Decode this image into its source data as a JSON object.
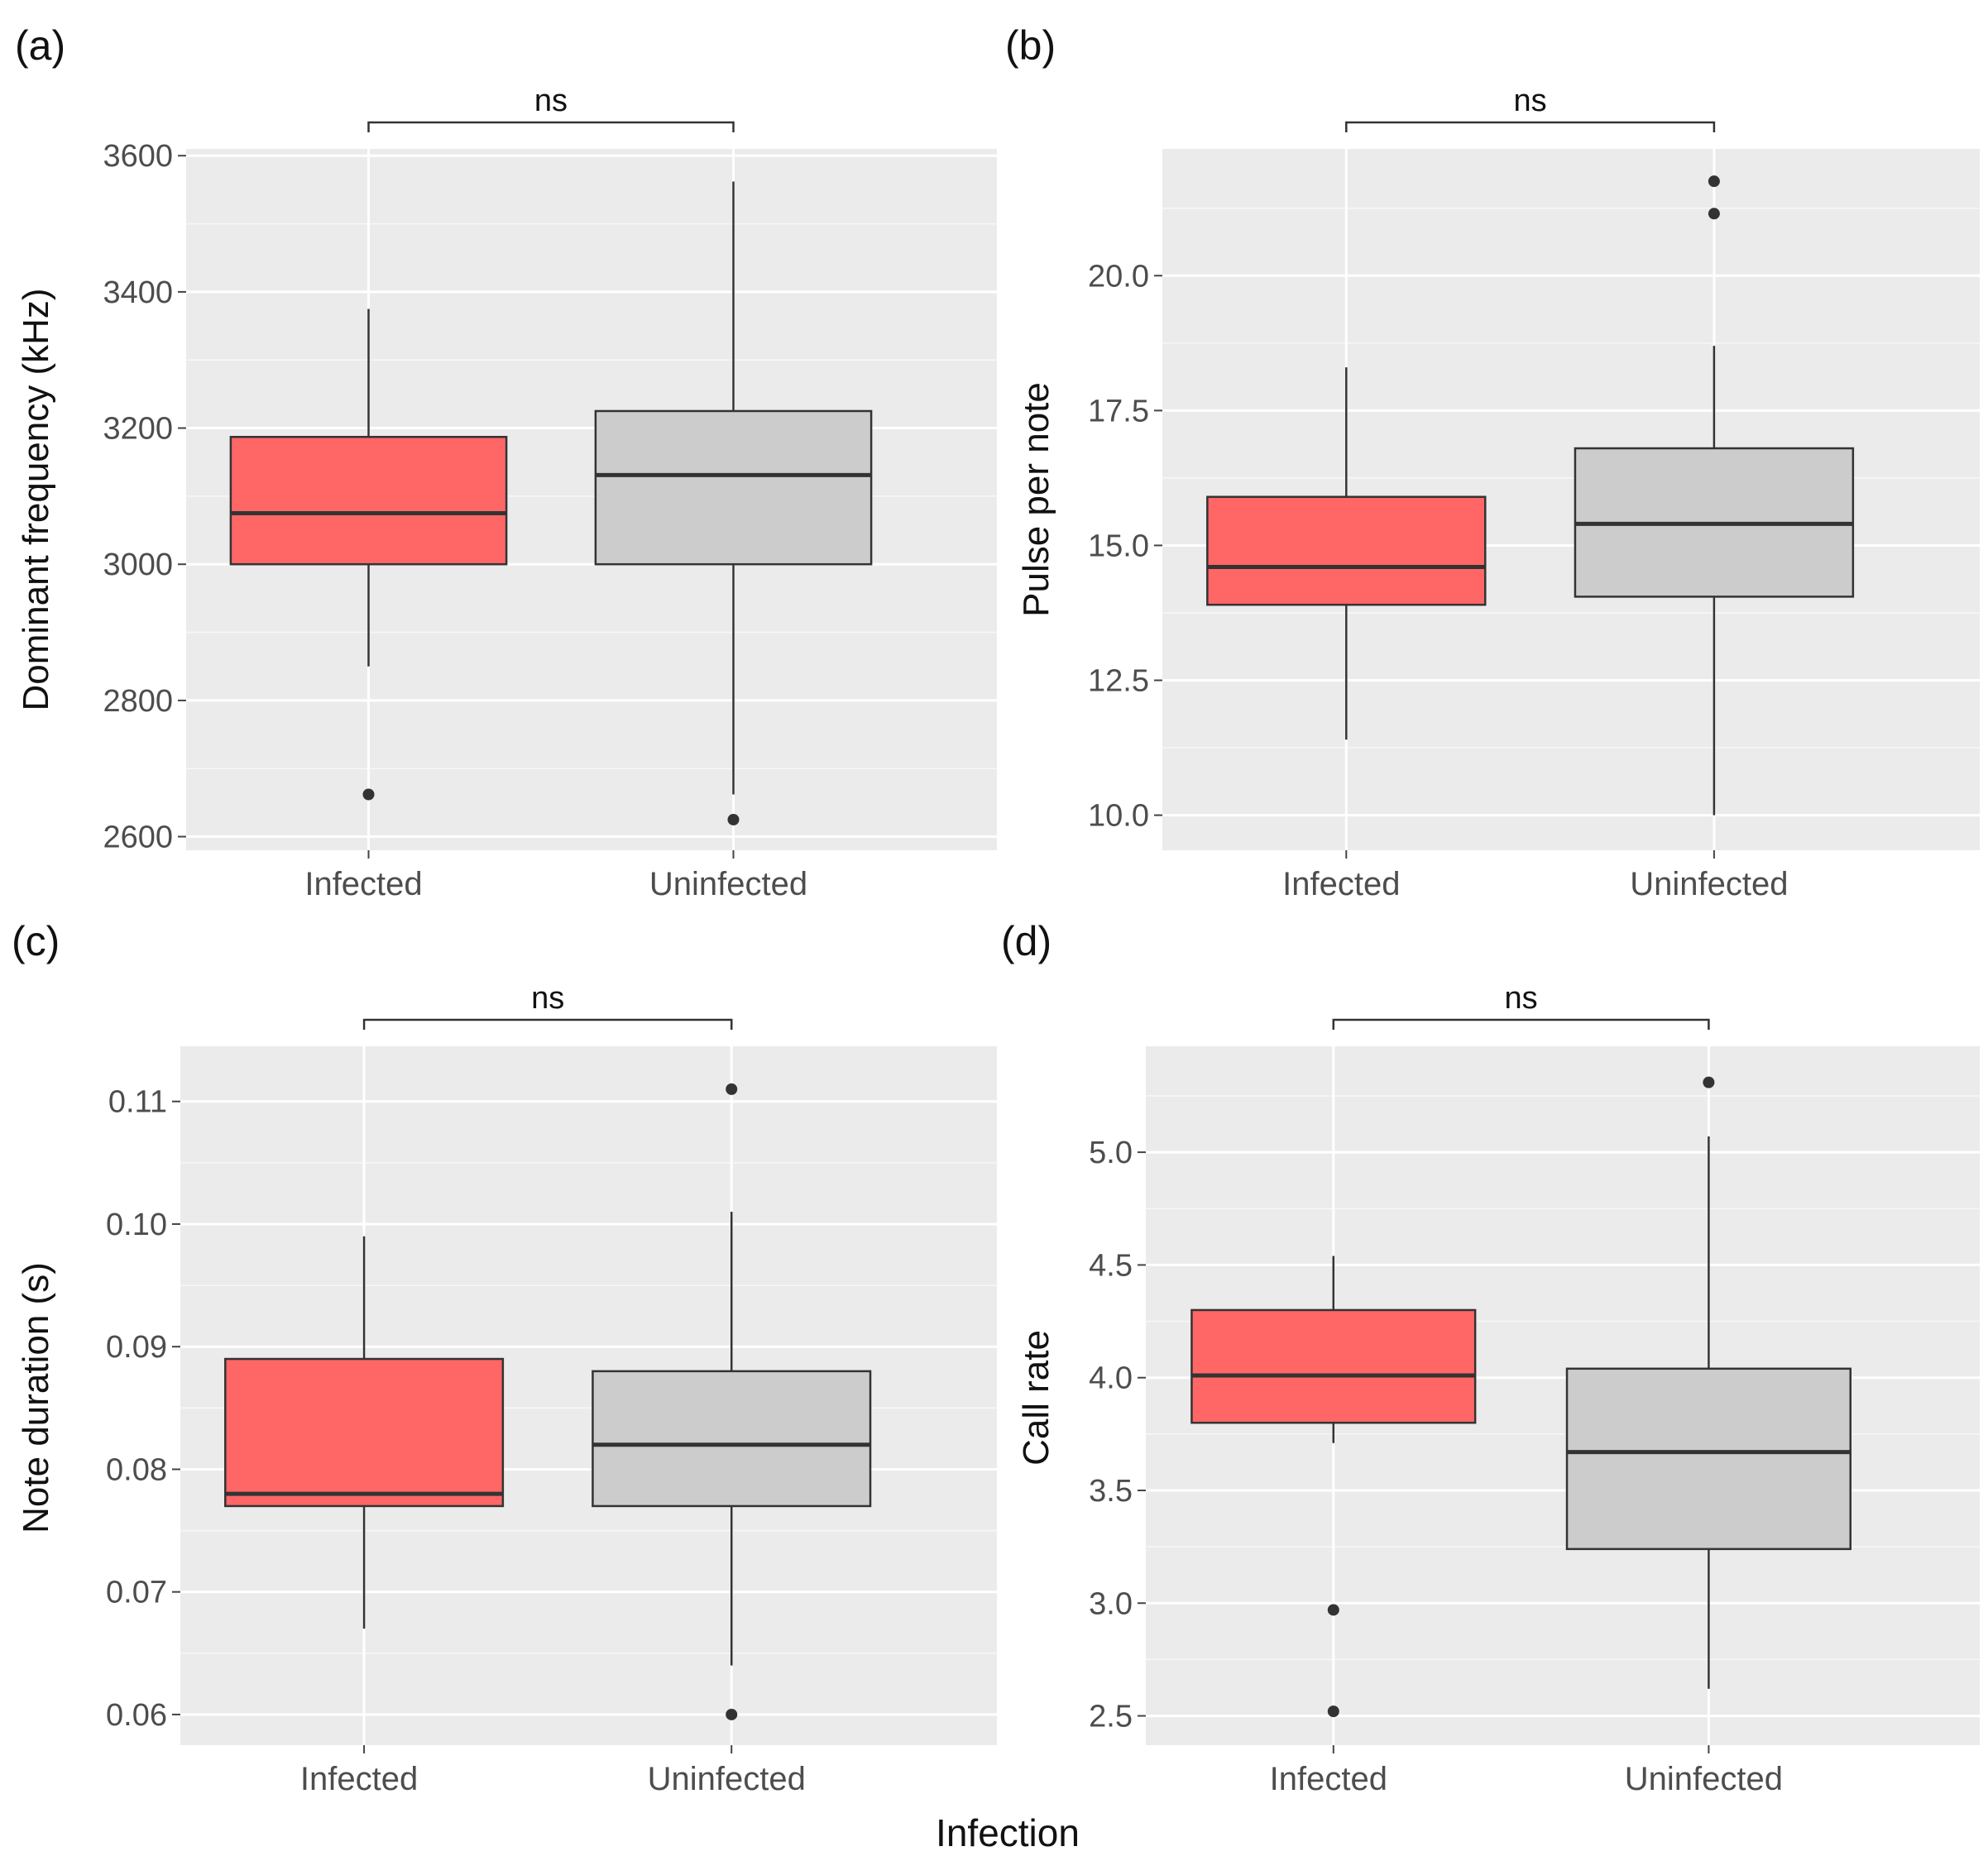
{
  "figure": {
    "shared_xlabel": "Infection"
  },
  "chart_data": [
    {
      "type": "boxplot",
      "panel_label": "(a)",
      "ylabel": "Dominant frequency (kHz)",
      "xlabel": "",
      "categories": [
        "Infected",
        "Uninfected"
      ],
      "ylim": [
        2580,
        3610
      ],
      "yticks": [
        2600,
        2800,
        3000,
        3200,
        3400,
        3600
      ],
      "ytick_labels": [
        "2600",
        "2800",
        "3000",
        "3200",
        "3400",
        "3600"
      ],
      "boxes": [
        {
          "category": "Infected",
          "whisker_low": 2850,
          "q1": 3000,
          "median": 3075,
          "q3": 3187,
          "whisker_high": 3375,
          "outliers": [
            2662
          ],
          "fill": "#ff6666"
        },
        {
          "category": "Uninfected",
          "whisker_low": 2662,
          "q1": 3000,
          "median": 3131,
          "q3": 3225,
          "whisker_high": 3562,
          "outliers": [
            2625
          ],
          "fill": "#cccccc"
        }
      ],
      "significance": {
        "label": "ns"
      }
    },
    {
      "type": "boxplot",
      "panel_label": "(b)",
      "ylabel": "Pulse per note",
      "xlabel": "",
      "categories": [
        "Infected",
        "Uninfected"
      ],
      "ylim": [
        9.35,
        22.35
      ],
      "yticks": [
        10.0,
        12.5,
        15.0,
        17.5,
        20.0
      ],
      "ytick_labels": [
        "10.0",
        "12.5",
        "15.0",
        "17.5",
        "20.0"
      ],
      "boxes": [
        {
          "category": "Infected",
          "whisker_low": 11.4,
          "q1": 13.9,
          "median": 14.6,
          "q3": 15.9,
          "whisker_high": 18.3,
          "outliers": [],
          "fill": "#ff6666"
        },
        {
          "category": "Uninfected",
          "whisker_low": 10.0,
          "q1": 14.05,
          "median": 15.4,
          "q3": 16.8,
          "whisker_high": 18.7,
          "outliers": [
            21.75,
            21.15
          ],
          "fill": "#cccccc"
        }
      ],
      "significance": {
        "label": "ns"
      }
    },
    {
      "type": "boxplot",
      "panel_label": "(c)",
      "ylabel": "Note duration (s)",
      "xlabel": "",
      "categories": [
        "Infected",
        "Uninfected"
      ],
      "ylim": [
        0.0575,
        0.1145
      ],
      "yticks": [
        0.06,
        0.07,
        0.08,
        0.09,
        0.1,
        0.11
      ],
      "ytick_labels": [
        "0.06",
        "0.07",
        "0.08",
        "0.09",
        "0.10",
        "0.11"
      ],
      "boxes": [
        {
          "category": "Infected",
          "whisker_low": 0.067,
          "q1": 0.077,
          "median": 0.078,
          "q3": 0.089,
          "whisker_high": 0.099,
          "outliers": [],
          "fill": "#ff6666"
        },
        {
          "category": "Uninfected",
          "whisker_low": 0.064,
          "q1": 0.077,
          "median": 0.082,
          "q3": 0.088,
          "whisker_high": 0.101,
          "outliers": [
            0.111,
            0.06
          ],
          "fill": "#cccccc"
        }
      ],
      "significance": {
        "label": "ns"
      }
    },
    {
      "type": "boxplot",
      "panel_label": "(d)",
      "ylabel": "Call rate",
      "xlabel": "",
      "categories": [
        "Infected",
        "Uninfected"
      ],
      "ylim": [
        2.37,
        5.47
      ],
      "yticks": [
        2.5,
        3.0,
        3.5,
        4.0,
        4.5,
        5.0
      ],
      "ytick_labels": [
        "2.5",
        "3.0",
        "3.5",
        "4.0",
        "4.5",
        "5.0"
      ],
      "boxes": [
        {
          "category": "Infected",
          "whisker_low": 3.71,
          "q1": 3.8,
          "median": 4.01,
          "q3": 4.3,
          "whisker_high": 4.54,
          "outliers": [
            2.97,
            2.52
          ],
          "fill": "#ff6666"
        },
        {
          "category": "Uninfected",
          "whisker_low": 2.62,
          "q1": 3.24,
          "median": 3.67,
          "q3": 4.04,
          "whisker_high": 5.07,
          "outliers": [
            5.31
          ],
          "fill": "#cccccc"
        }
      ],
      "significance": {
        "label": "ns"
      }
    }
  ]
}
